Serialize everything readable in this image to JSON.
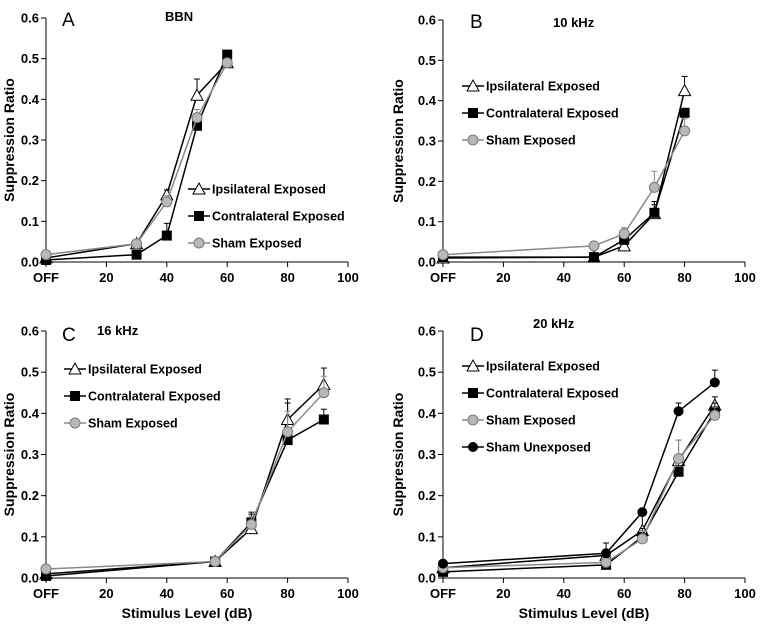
{
  "chart_data": [
    {
      "type": "line",
      "panel_label": "A",
      "title": "BBN",
      "xlabel": "",
      "ylabel": "Suppression Ratio",
      "xlim": [
        0,
        100
      ],
      "ylim": [
        0,
        0.6
      ],
      "x_tick_labels": [
        "OFF",
        "20",
        "40",
        "60",
        "80",
        "100"
      ],
      "y_tick_labels": [
        "0.0",
        "0.1",
        "0.2",
        "0.3",
        "0.4",
        "0.5",
        "0.6"
      ],
      "legend_position": "middle-right",
      "series": [
        {
          "name": "Ipsilateral Exposed",
          "marker": "triangle-open",
          "color": "#000000",
          "x": [
            0,
            30,
            40,
            50,
            60
          ],
          "y": [
            0.01,
            0.045,
            0.165,
            0.41,
            0.49
          ],
          "err": [
            0.005,
            0.01,
            0.012,
            0.04,
            0.0
          ]
        },
        {
          "name": "Contralateral Exposed",
          "marker": "square-filled",
          "color": "#000000",
          "x": [
            0,
            30,
            40,
            50,
            60
          ],
          "y": [
            0.005,
            0.018,
            0.065,
            0.335,
            0.51
          ],
          "err": [
            0.005,
            0.005,
            0.03,
            0.03,
            0.0
          ]
        },
        {
          "name": "Sham Exposed",
          "marker": "circle-gray",
          "color": "#808080",
          "x": [
            0,
            30,
            40,
            50,
            60
          ],
          "y": [
            0.018,
            0.045,
            0.148,
            0.355,
            0.49
          ],
          "err": [
            0.005,
            0.01,
            0.015,
            0.02,
            0.0
          ]
        }
      ]
    },
    {
      "type": "line",
      "panel_label": "B",
      "title": "10 kHz",
      "xlabel": "",
      "ylabel": "Suppression Ratio",
      "xlim": [
        0,
        100
      ],
      "ylim": [
        0,
        0.6
      ],
      "x_tick_labels": [
        "OFF",
        "20",
        "40",
        "60",
        "80",
        "100"
      ],
      "y_tick_labels": [
        "0.0",
        "0.1",
        "0.2",
        "0.3",
        "0.4",
        "0.5",
        "0.6"
      ],
      "legend_position": "top-left",
      "series": [
        {
          "name": "Ipsilateral Exposed",
          "marker": "triangle-open",
          "color": "#000000",
          "x": [
            0,
            50,
            60,
            70,
            80
          ],
          "y": [
            0.01,
            0.012,
            0.04,
            0.12,
            0.425
          ],
          "err": [
            0.005,
            0.005,
            0.01,
            0.03,
            0.035
          ]
        },
        {
          "name": "Contralateral Exposed",
          "marker": "square-filled",
          "color": "#000000",
          "x": [
            0,
            50,
            60,
            70,
            80
          ],
          "y": [
            0.012,
            0.012,
            0.055,
            0.122,
            0.37
          ],
          "err": [
            0.005,
            0.005,
            0.01,
            0.02,
            0.0
          ]
        },
        {
          "name": "Sham Exposed",
          "marker": "circle-gray",
          "color": "#808080",
          "x": [
            0,
            50,
            60,
            70,
            80
          ],
          "y": [
            0.018,
            0.04,
            0.07,
            0.185,
            0.325
          ],
          "err": [
            0.005,
            0.008,
            0.015,
            0.04,
            0.03
          ]
        }
      ]
    },
    {
      "type": "line",
      "panel_label": "C",
      "title": "16 kHz",
      "xlabel": "Stimulus Level (dB)",
      "ylabel": "Suppression Ratio",
      "xlim": [
        0,
        100
      ],
      "ylim": [
        0,
        0.6
      ],
      "x_tick_labels": [
        "OFF",
        "20",
        "40",
        "60",
        "80",
        "100"
      ],
      "y_tick_labels": [
        "0.0",
        "0.1",
        "0.2",
        "0.3",
        "0.4",
        "0.5",
        "0.6"
      ],
      "legend_position": "top-left",
      "series": [
        {
          "name": "Ipsilateral Exposed",
          "marker": "triangle-open",
          "color": "#000000",
          "x": [
            0,
            56,
            68,
            80,
            92
          ],
          "y": [
            0.01,
            0.04,
            0.12,
            0.385,
            0.47
          ],
          "err": [
            0.005,
            0.01,
            0.04,
            0.05,
            0.04
          ]
        },
        {
          "name": "Contralateral Exposed",
          "marker": "square-filled",
          "color": "#000000",
          "x": [
            0,
            56,
            68,
            80,
            92
          ],
          "y": [
            0.005,
            0.04,
            0.135,
            0.335,
            0.385
          ],
          "err": [
            0.005,
            0.01,
            0.02,
            0.09,
            0.025
          ]
        },
        {
          "name": "Sham Exposed",
          "marker": "circle-gray",
          "color": "#808080",
          "x": [
            0,
            56,
            68,
            80,
            92
          ],
          "y": [
            0.022,
            0.04,
            0.13,
            0.355,
            0.45
          ],
          "err": [
            0.005,
            0.012,
            0.02,
            0.05,
            0.04
          ]
        }
      ]
    },
    {
      "type": "line",
      "panel_label": "D",
      "title": "20 kHz",
      "xlabel": "Stimulus Level (dB)",
      "ylabel": "Suppression Ratio",
      "xlim": [
        0,
        100
      ],
      "ylim": [
        0,
        0.6
      ],
      "x_tick_labels": [
        "OFF",
        "20",
        "40",
        "60",
        "80",
        "100"
      ],
      "y_tick_labels": [
        "0.0",
        "0.1",
        "0.2",
        "0.3",
        "0.4",
        "0.5",
        "0.6"
      ],
      "legend_position": "top-left",
      "series": [
        {
          "name": "Ipsilateral Exposed",
          "marker": "triangle-open",
          "color": "#000000",
          "x": [
            0,
            54,
            66,
            78,
            90
          ],
          "y": [
            0.025,
            0.055,
            0.115,
            0.285,
            0.42
          ],
          "err": [
            0.01,
            0.03,
            0.04,
            0.05,
            0.02
          ]
        },
        {
          "name": "Contralateral Exposed",
          "marker": "square-filled",
          "color": "#000000",
          "x": [
            0,
            54,
            66,
            78,
            90
          ],
          "y": [
            0.015,
            0.032,
            0.1,
            0.258,
            0.405
          ],
          "err": [
            0.005,
            0.01,
            0.02,
            0.03,
            0.02
          ]
        },
        {
          "name": "Sham Exposed",
          "marker": "circle-gray",
          "color": "#808080",
          "x": [
            0,
            54,
            66,
            78,
            90
          ],
          "y": [
            0.025,
            0.038,
            0.095,
            0.29,
            0.395
          ],
          "err": [
            0.005,
            0.01,
            0.02,
            0.045,
            0.02
          ]
        },
        {
          "name": "Sham Unexposed",
          "marker": "circle-filled",
          "color": "#000000",
          "x": [
            0,
            54,
            66,
            78,
            90
          ],
          "y": [
            0.035,
            0.06,
            0.16,
            0.405,
            0.475
          ],
          "err": [
            0.005,
            0.0,
            0.0,
            0.02,
            0.03
          ]
        }
      ]
    }
  ]
}
